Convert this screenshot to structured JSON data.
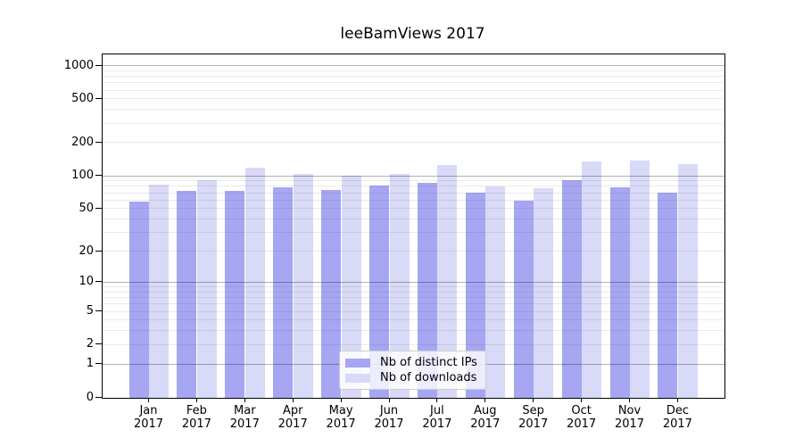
{
  "chart_data": {
    "type": "bar",
    "title": "leeBamViews 2017",
    "xlabel": "",
    "ylabel": "",
    "yscale": "log1p",
    "ylim": [
      0,
      1000
    ],
    "yticks": [
      0,
      1,
      2,
      5,
      10,
      20,
      50,
      100,
      200,
      500,
      1000
    ],
    "grid": true,
    "gridlines_over_bars": true,
    "legend_position": "lower center",
    "categories": [
      "Jan",
      "Feb",
      "Mar",
      "Apr",
      "May",
      "Jun",
      "Jul",
      "Aug",
      "Sep",
      "Oct",
      "Nov",
      "Dec"
    ],
    "category_sublabel": "2017",
    "series": [
      {
        "name": "Nb of distinct IPs",
        "color": "#a6a6f2",
        "values": [
          58,
          74,
          73,
          79,
          75,
          82,
          87,
          71,
          60,
          92,
          79,
          71
        ]
      },
      {
        "name": "Nb of downloads",
        "color": "#d9d9f8",
        "values": [
          84,
          92,
          120,
          104,
          101,
          104,
          126,
          80,
          78,
          136,
          140,
          130
        ]
      }
    ]
  }
}
